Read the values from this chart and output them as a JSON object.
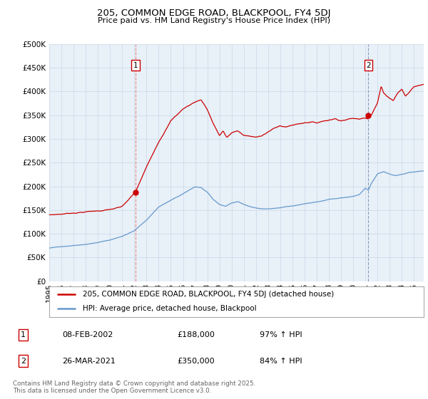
{
  "title1": "205, COMMON EDGE ROAD, BLACKPOOL, FY4 5DJ",
  "title2": "Price paid vs. HM Land Registry's House Price Index (HPI)",
  "legend_line1": "205, COMMON EDGE ROAD, BLACKPOOL, FY4 5DJ (detached house)",
  "legend_line2": "HPI: Average price, detached house, Blackpool",
  "annotation1_label": "1",
  "annotation1_date": "08-FEB-2002",
  "annotation1_price": "£188,000",
  "annotation1_hpi": "97% ↑ HPI",
  "annotation1_year": 2002.1,
  "annotation1_value": 188000,
  "annotation2_label": "2",
  "annotation2_date": "26-MAR-2021",
  "annotation2_price": "£350,000",
  "annotation2_hpi": "84% ↑ HPI",
  "annotation2_year": 2021.25,
  "annotation2_value": 350000,
  "footer": "Contains HM Land Registry data © Crown copyright and database right 2025.\nThis data is licensed under the Open Government Licence v3.0.",
  "red_color": "#cc0000",
  "blue_color": "#6699cc",
  "dashed_red": "#ee8888",
  "dashed_blue": "#8899bb",
  "bg_color": "#e8f0f8",
  "ylim": [
    0,
    500000
  ],
  "yticks": [
    0,
    50000,
    100000,
    150000,
    200000,
    250000,
    300000,
    350000,
    400000,
    450000,
    500000
  ],
  "xlim_start": 1995,
  "xlim_end": 2025.8
}
